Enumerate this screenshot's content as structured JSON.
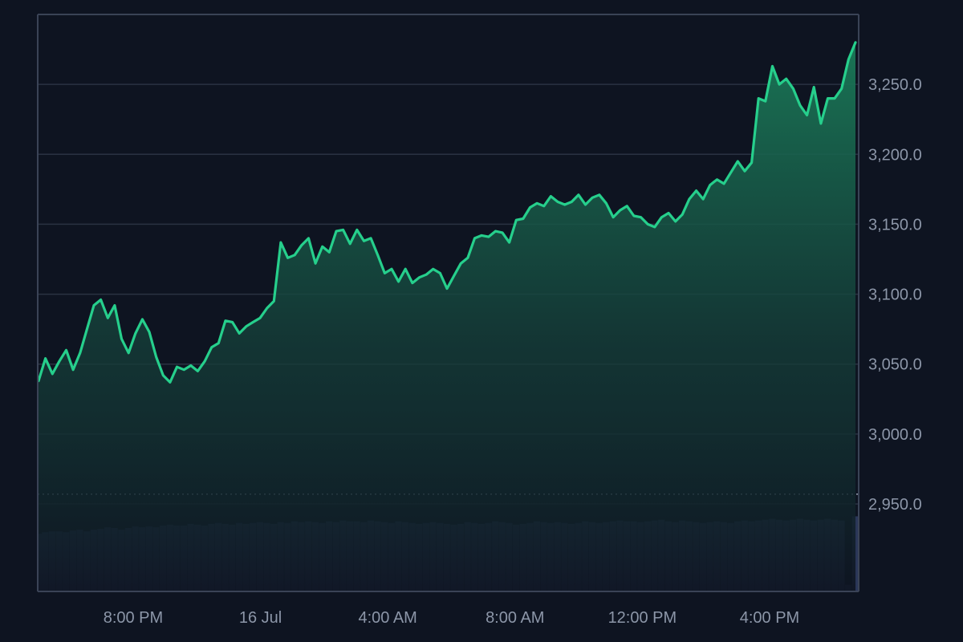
{
  "chart_data": {
    "type": "area",
    "x_ticks": [
      "8:00 PM",
      "16 Jul",
      "4:00 AM",
      "8:00 AM",
      "12:00 PM",
      "4:00 PM"
    ],
    "x_range_hours": [
      -3.0,
      22.8
    ],
    "x_tick_hours": [
      0,
      4,
      8,
      12,
      16,
      20
    ],
    "y_ticks": [
      "3,250.0",
      "3,200.0",
      "3,150.0",
      "3,100.0",
      "3,050.0",
      "3,000.0",
      "2,950.0"
    ],
    "y_tick_values": [
      3250,
      3200,
      3150,
      3100,
      3050,
      3000,
      2950
    ],
    "ylim": [
      2950,
      3300
    ],
    "reference_line_value": 2957,
    "grid": true,
    "series": [
      {
        "values": [
          3038,
          3054,
          3043,
          3052,
          3060,
          3046,
          3058,
          3075,
          3092,
          3096,
          3083,
          3092,
          3068,
          3058,
          3072,
          3082,
          3073,
          3055,
          3042,
          3037,
          3048,
          3046,
          3049,
          3045,
          3052,
          3062,
          3065,
          3081,
          3080,
          3072,
          3077,
          3080,
          3083,
          3090,
          3095,
          3137,
          3126,
          3128,
          3135,
          3140,
          3122,
          3134,
          3130,
          3145,
          3146,
          3136,
          3146,
          3138,
          3140,
          3128,
          3115,
          3118,
          3109,
          3118,
          3108,
          3112,
          3114,
          3118,
          3115,
          3104,
          3113,
          3122,
          3126,
          3140,
          3142,
          3141,
          3145,
          3144,
          3137,
          3153,
          3154,
          3162,
          3165,
          3163,
          3170,
          3166,
          3164,
          3166,
          3171,
          3164,
          3169,
          3171,
          3165,
          3155,
          3160,
          3163,
          3156,
          3155,
          3150,
          3148,
          3155,
          3158,
          3152,
          3157,
          3168,
          3174,
          3168,
          3178,
          3182,
          3179,
          3187,
          3195,
          3188,
          3194,
          3240,
          3238,
          3263,
          3250,
          3254,
          3247,
          3235,
          3228,
          3248,
          3222,
          3240,
          3240,
          3247,
          3268,
          3280
        ],
        "volume": [
          0.69,
          0.71,
          0.72,
          0.72,
          0.71,
          0.73,
          0.74,
          0.72,
          0.74,
          0.75,
          0.77,
          0.76,
          0.74,
          0.76,
          0.78,
          0.77,
          0.78,
          0.77,
          0.79,
          0.8,
          0.79,
          0.79,
          0.81,
          0.8,
          0.79,
          0.81,
          0.82,
          0.81,
          0.8,
          0.82,
          0.81,
          0.82,
          0.83,
          0.82,
          0.81,
          0.83,
          0.82,
          0.84,
          0.83,
          0.84,
          0.83,
          0.82,
          0.84,
          0.83,
          0.85,
          0.84,
          0.84,
          0.83,
          0.85,
          0.84,
          0.83,
          0.82,
          0.84,
          0.83,
          0.82,
          0.81,
          0.82,
          0.83,
          0.82,
          0.81,
          0.8,
          0.81,
          0.83,
          0.82,
          0.81,
          0.82,
          0.84,
          0.83,
          0.82,
          0.8,
          0.81,
          0.82,
          0.84,
          0.83,
          0.82,
          0.83,
          0.82,
          0.81,
          0.82,
          0.84,
          0.83,
          0.82,
          0.83,
          0.84,
          0.85,
          0.84,
          0.84,
          0.83,
          0.84,
          0.85,
          0.86,
          0.84,
          0.83,
          0.85,
          0.84,
          0.83,
          0.82,
          0.83,
          0.84,
          0.83,
          0.82,
          0.84,
          0.85,
          0.84,
          0.85,
          0.86,
          0.87,
          0.86,
          0.85,
          0.86,
          0.87,
          0.86,
          0.85,
          0.86,
          0.87,
          0.86,
          0.85,
          0.08,
          0.9
        ]
      }
    ],
    "colors": {
      "background": "#0e1421",
      "line": "#26cf8c",
      "area_top": "#1a7a58",
      "grid": "#2a3242",
      "axis": "#3a4356",
      "volume": "#2a3658",
      "tick_text": "#8c96a8"
    }
  }
}
